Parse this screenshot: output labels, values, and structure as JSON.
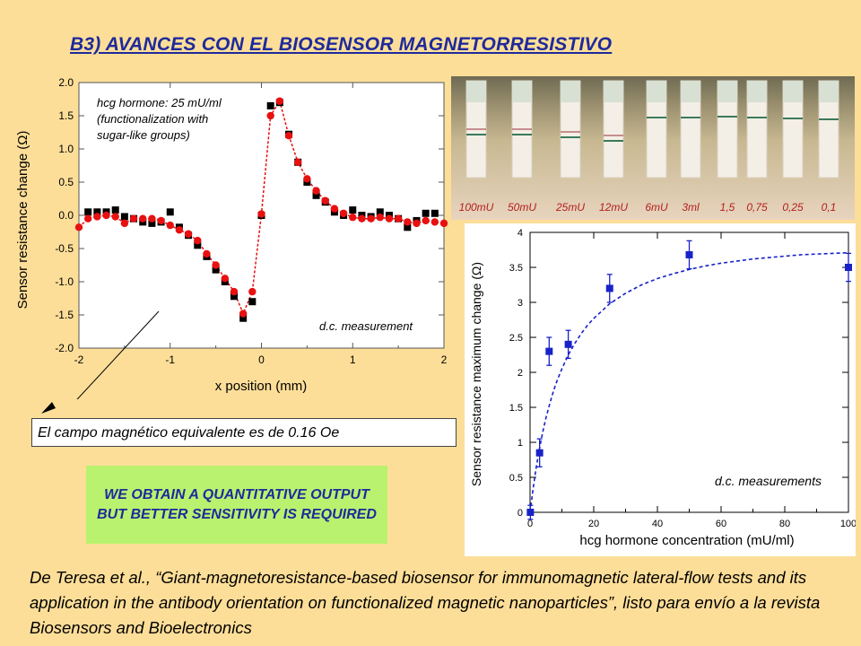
{
  "title": "B3) AVANCES CON EL BIOSENSOR MAGNETORRESISTIVO",
  "note": "El campo magnético equivalente es de 0.16 Oe",
  "highlight": "WE OBTAIN A QUANTITATIVE OUTPUT BUT BETTER SENSITIVITY IS REQUIRED",
  "reference": "De Teresa et al., “Giant-magnetoresistance-based biosensor for immunomagnetic lateral-flow tests and its application in the antibody orientation on functionalized magnetic nanoparticles”, listo para envío a la revista Biosensors and Bioelectronics",
  "photo": {
    "labels": [
      "100mU",
      "50mU",
      "25mU",
      "12mU",
      "6mU",
      "3ml",
      "1,5",
      "0,75",
      "0,25",
      "0,1"
    ]
  },
  "chart_data": [
    {
      "type": "scatter",
      "xlabel": "x position (mm)",
      "ylabel": "Sensor resistance change (Ω)",
      "xlim": [
        -2,
        2
      ],
      "ylim": [
        -2.0,
        2.0
      ],
      "xticks": [
        "-2",
        "-1",
        "0",
        "1",
        "2"
      ],
      "yticks": [
        "-2.0",
        "-1.5",
        "-1.0",
        "-0.5",
        "0.0",
        "0.5",
        "1.0",
        "1.5",
        "2.0"
      ],
      "annotations": [
        "hcg hormone: 25 mU/ml",
        "(functionalization with",
        "sugar-like groups)",
        "d.c. measurement"
      ],
      "colors": {
        "squares": "#000000",
        "circles": "#e81010",
        "line": "#e81010"
      },
      "series": [
        {
          "marker": "square",
          "x": [
            -1.9,
            -1.8,
            -1.7,
            -1.6,
            -1.5,
            -1.4,
            -1.3,
            -1.2,
            -1.1,
            -1.0,
            -0.9,
            -0.8,
            -0.7,
            -0.6,
            -0.5,
            -0.4,
            -0.3,
            -0.2,
            -0.1,
            0.0,
            0.1,
            0.2,
            0.3,
            0.4,
            0.5,
            0.6,
            0.7,
            0.8,
            0.9,
            1.0,
            1.1,
            1.2,
            1.3,
            1.4,
            1.5,
            1.6,
            1.7,
            1.8,
            1.9
          ],
          "y": [
            0.05,
            0.05,
            0.05,
            0.08,
            -0.02,
            -0.05,
            -0.1,
            -0.12,
            -0.1,
            0.05,
            -0.18,
            -0.3,
            -0.45,
            -0.62,
            -0.82,
            -1.0,
            -1.22,
            -1.55,
            -1.3,
            0.0,
            1.65,
            1.7,
            1.22,
            0.8,
            0.5,
            0.3,
            0.2,
            0.05,
            0.0,
            0.08,
            0.0,
            -0.02,
            0.05,
            0.0,
            -0.05,
            -0.18,
            -0.08,
            0.03,
            0.03
          ]
        },
        {
          "marker": "circle",
          "x": [
            -2.0,
            -1.9,
            -1.8,
            -1.7,
            -1.6,
            -1.5,
            -1.4,
            -1.3,
            -1.2,
            -1.1,
            -1.0,
            -0.9,
            -0.8,
            -0.7,
            -0.6,
            -0.5,
            -0.4,
            -0.3,
            -0.2,
            -0.1,
            0.0,
            0.1,
            0.2,
            0.3,
            0.4,
            0.5,
            0.6,
            0.7,
            0.8,
            0.9,
            1.0,
            1.1,
            1.2,
            1.3,
            1.4,
            1.5,
            1.6,
            1.7,
            1.8,
            1.9,
            2.0
          ],
          "y": [
            -0.18,
            -0.05,
            -0.02,
            0.0,
            -0.02,
            -0.12,
            -0.05,
            -0.05,
            -0.05,
            -0.08,
            -0.15,
            -0.22,
            -0.28,
            -0.38,
            -0.58,
            -0.75,
            -0.95,
            -1.15,
            -1.48,
            -1.15,
            0.02,
            1.5,
            1.72,
            1.2,
            0.8,
            0.55,
            0.37,
            0.22,
            0.1,
            0.03,
            -0.03,
            -0.05,
            -0.05,
            -0.03,
            -0.05,
            -0.05,
            -0.1,
            -0.12,
            -0.08,
            -0.1,
            -0.12
          ]
        }
      ]
    },
    {
      "type": "scatter",
      "xlabel": "hcg hormone concentration (mU/ml)",
      "ylabel": "Sensor resistance maximum change (Ω)",
      "xlim": [
        0,
        100
      ],
      "ylim": [
        0,
        4
      ],
      "xticks": [
        "0",
        "20",
        "40",
        "60",
        "80",
        "100"
      ],
      "yticks": [
        "0",
        "0.5",
        "1",
        "1.5",
        "2",
        "2.5",
        "3",
        "3.5",
        "4"
      ],
      "annotations": [
        "d.c. measurements"
      ],
      "colors": {
        "points": "#1822c8",
        "fit": "#1822c8"
      },
      "points": {
        "x": [
          0.1,
          3,
          6,
          12,
          25,
          50,
          100
        ],
        "y": [
          0.0,
          0.85,
          2.3,
          2.4,
          3.2,
          3.68,
          3.5
        ],
        "err": [
          0.1,
          0.2,
          0.2,
          0.2,
          0.2,
          0.2,
          0.2
        ]
      },
      "fit": {
        "x": [
          0,
          1,
          2,
          3,
          4,
          5,
          6,
          7,
          8,
          9,
          10,
          12,
          14,
          16,
          18,
          20,
          25,
          30,
          35,
          40,
          45,
          50,
          55,
          60,
          65,
          70,
          75,
          80,
          85,
          90,
          95,
          100
        ],
        "y": [
          0.0,
          0.35,
          0.66,
          0.92,
          1.15,
          1.35,
          1.52,
          1.68,
          1.82,
          1.94,
          2.05,
          2.25,
          2.41,
          2.55,
          2.67,
          2.77,
          2.98,
          3.13,
          3.25,
          3.34,
          3.41,
          3.47,
          3.52,
          3.56,
          3.59,
          3.62,
          3.64,
          3.66,
          3.68,
          3.69,
          3.7,
          3.71
        ]
      }
    }
  ]
}
